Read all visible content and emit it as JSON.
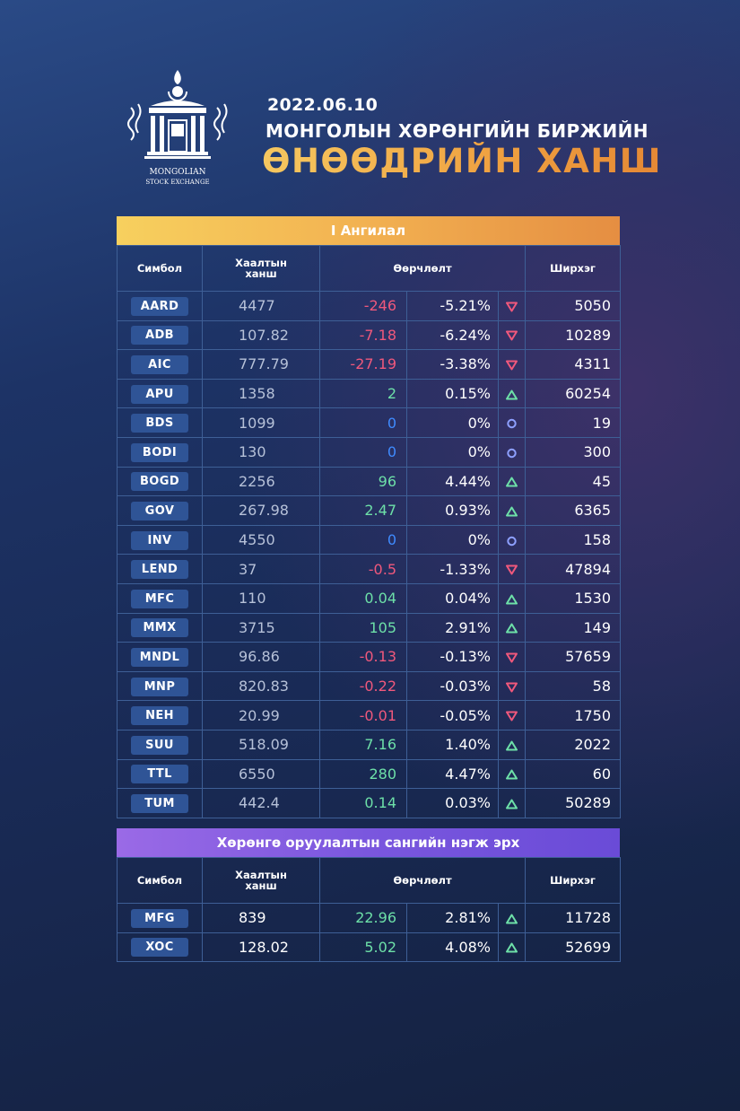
{
  "header": {
    "date": "2022.06.10",
    "subtitle": "МОНГОЛЫН ХӨРӨНГИЙН БИРЖИЙН",
    "title": "ӨНӨӨДРИЙН ХАНШ",
    "logo_line1": "MONGOLIAN",
    "logo_line2": "STOCK EXCHANGE"
  },
  "colors": {
    "gold": "#f2b151",
    "purple": "#7a57de",
    "negative": "#f0587c",
    "positive": "#6de0a8",
    "zero": "#3f8bff",
    "symbol_bg": "#2f5496"
  },
  "section1": {
    "title": "I Ангилал",
    "headers": {
      "symbol": "Симбол",
      "close_l1": "Хаалтын",
      "close_l2": "ханш",
      "change": "Өөрчлөлт",
      "qty": "Ширхэг"
    },
    "rows": [
      {
        "sym": "AARD",
        "close": "4477",
        "chg": "-246",
        "pct": "-5.21%",
        "dir": "down",
        "qty": "5050"
      },
      {
        "sym": "ADB",
        "close": "107.82",
        "chg": "-7.18",
        "pct": "-6.24%",
        "dir": "down",
        "qty": "10289"
      },
      {
        "sym": "AIC",
        "close": "777.79",
        "chg": "-27.19",
        "pct": "-3.38%",
        "dir": "down",
        "qty": "4311"
      },
      {
        "sym": "APU",
        "close": "1358",
        "chg": "2",
        "pct": "0.15%",
        "dir": "up",
        "qty": "60254"
      },
      {
        "sym": "BDS",
        "close": "1099",
        "chg": "0",
        "pct": "0%",
        "dir": "flat",
        "qty": "19"
      },
      {
        "sym": "BODI",
        "close": "130",
        "chg": "0",
        "pct": "0%",
        "dir": "flat",
        "qty": "300"
      },
      {
        "sym": "BOGD",
        "close": "2256",
        "chg": "96",
        "pct": "4.44%",
        "dir": "up",
        "qty": "45"
      },
      {
        "sym": "GOV",
        "close": "267.98",
        "chg": "2.47",
        "pct": "0.93%",
        "dir": "up",
        "qty": "6365"
      },
      {
        "sym": "INV",
        "close": "4550",
        "chg": "0",
        "pct": "0%",
        "dir": "flat",
        "qty": "158"
      },
      {
        "sym": "LEND",
        "close": "37",
        "chg": "-0.5",
        "pct": "-1.33%",
        "dir": "down",
        "qty": "47894"
      },
      {
        "sym": "MFC",
        "close": "110",
        "chg": "0.04",
        "pct": "0.04%",
        "dir": "up",
        "qty": "1530"
      },
      {
        "sym": "MMX",
        "close": "3715",
        "chg": "105",
        "pct": "2.91%",
        "dir": "up",
        "qty": "149"
      },
      {
        "sym": "MNDL",
        "close": "96.86",
        "chg": "-0.13",
        "pct": "-0.13%",
        "dir": "down",
        "qty": "57659"
      },
      {
        "sym": "MNP",
        "close": "820.83",
        "chg": "-0.22",
        "pct": "-0.03%",
        "dir": "down",
        "qty": "58"
      },
      {
        "sym": "NEH",
        "close": "20.99",
        "chg": "-0.01",
        "pct": "-0.05%",
        "dir": "down",
        "qty": "1750"
      },
      {
        "sym": "SUU",
        "close": "518.09",
        "chg": "7.16",
        "pct": "1.40%",
        "dir": "up",
        "qty": "2022"
      },
      {
        "sym": "TTL",
        "close": "6550",
        "chg": "280",
        "pct": "4.47%",
        "dir": "up",
        "qty": "60"
      },
      {
        "sym": "TUM",
        "close": "442.4",
        "chg": "0.14",
        "pct": "0.03%",
        "dir": "up",
        "qty": "50289"
      }
    ]
  },
  "section2": {
    "title": "Хөрөнгө оруулалтын сангийн нэгж эрх",
    "headers": {
      "symbol": "Симбол",
      "close_l1": "Хаалтын",
      "close_l2": "ханш",
      "change": "Өөрчлөлт",
      "qty": "Ширхэг"
    },
    "rows": [
      {
        "sym": "MFG",
        "close": "839",
        "chg": "22.96",
        "pct": "2.81%",
        "dir": "up",
        "qty": "11728"
      },
      {
        "sym": "XOC",
        "close": "128.02",
        "chg": "5.02",
        "pct": "4.08%",
        "dir": "up",
        "qty": "52699"
      }
    ]
  }
}
